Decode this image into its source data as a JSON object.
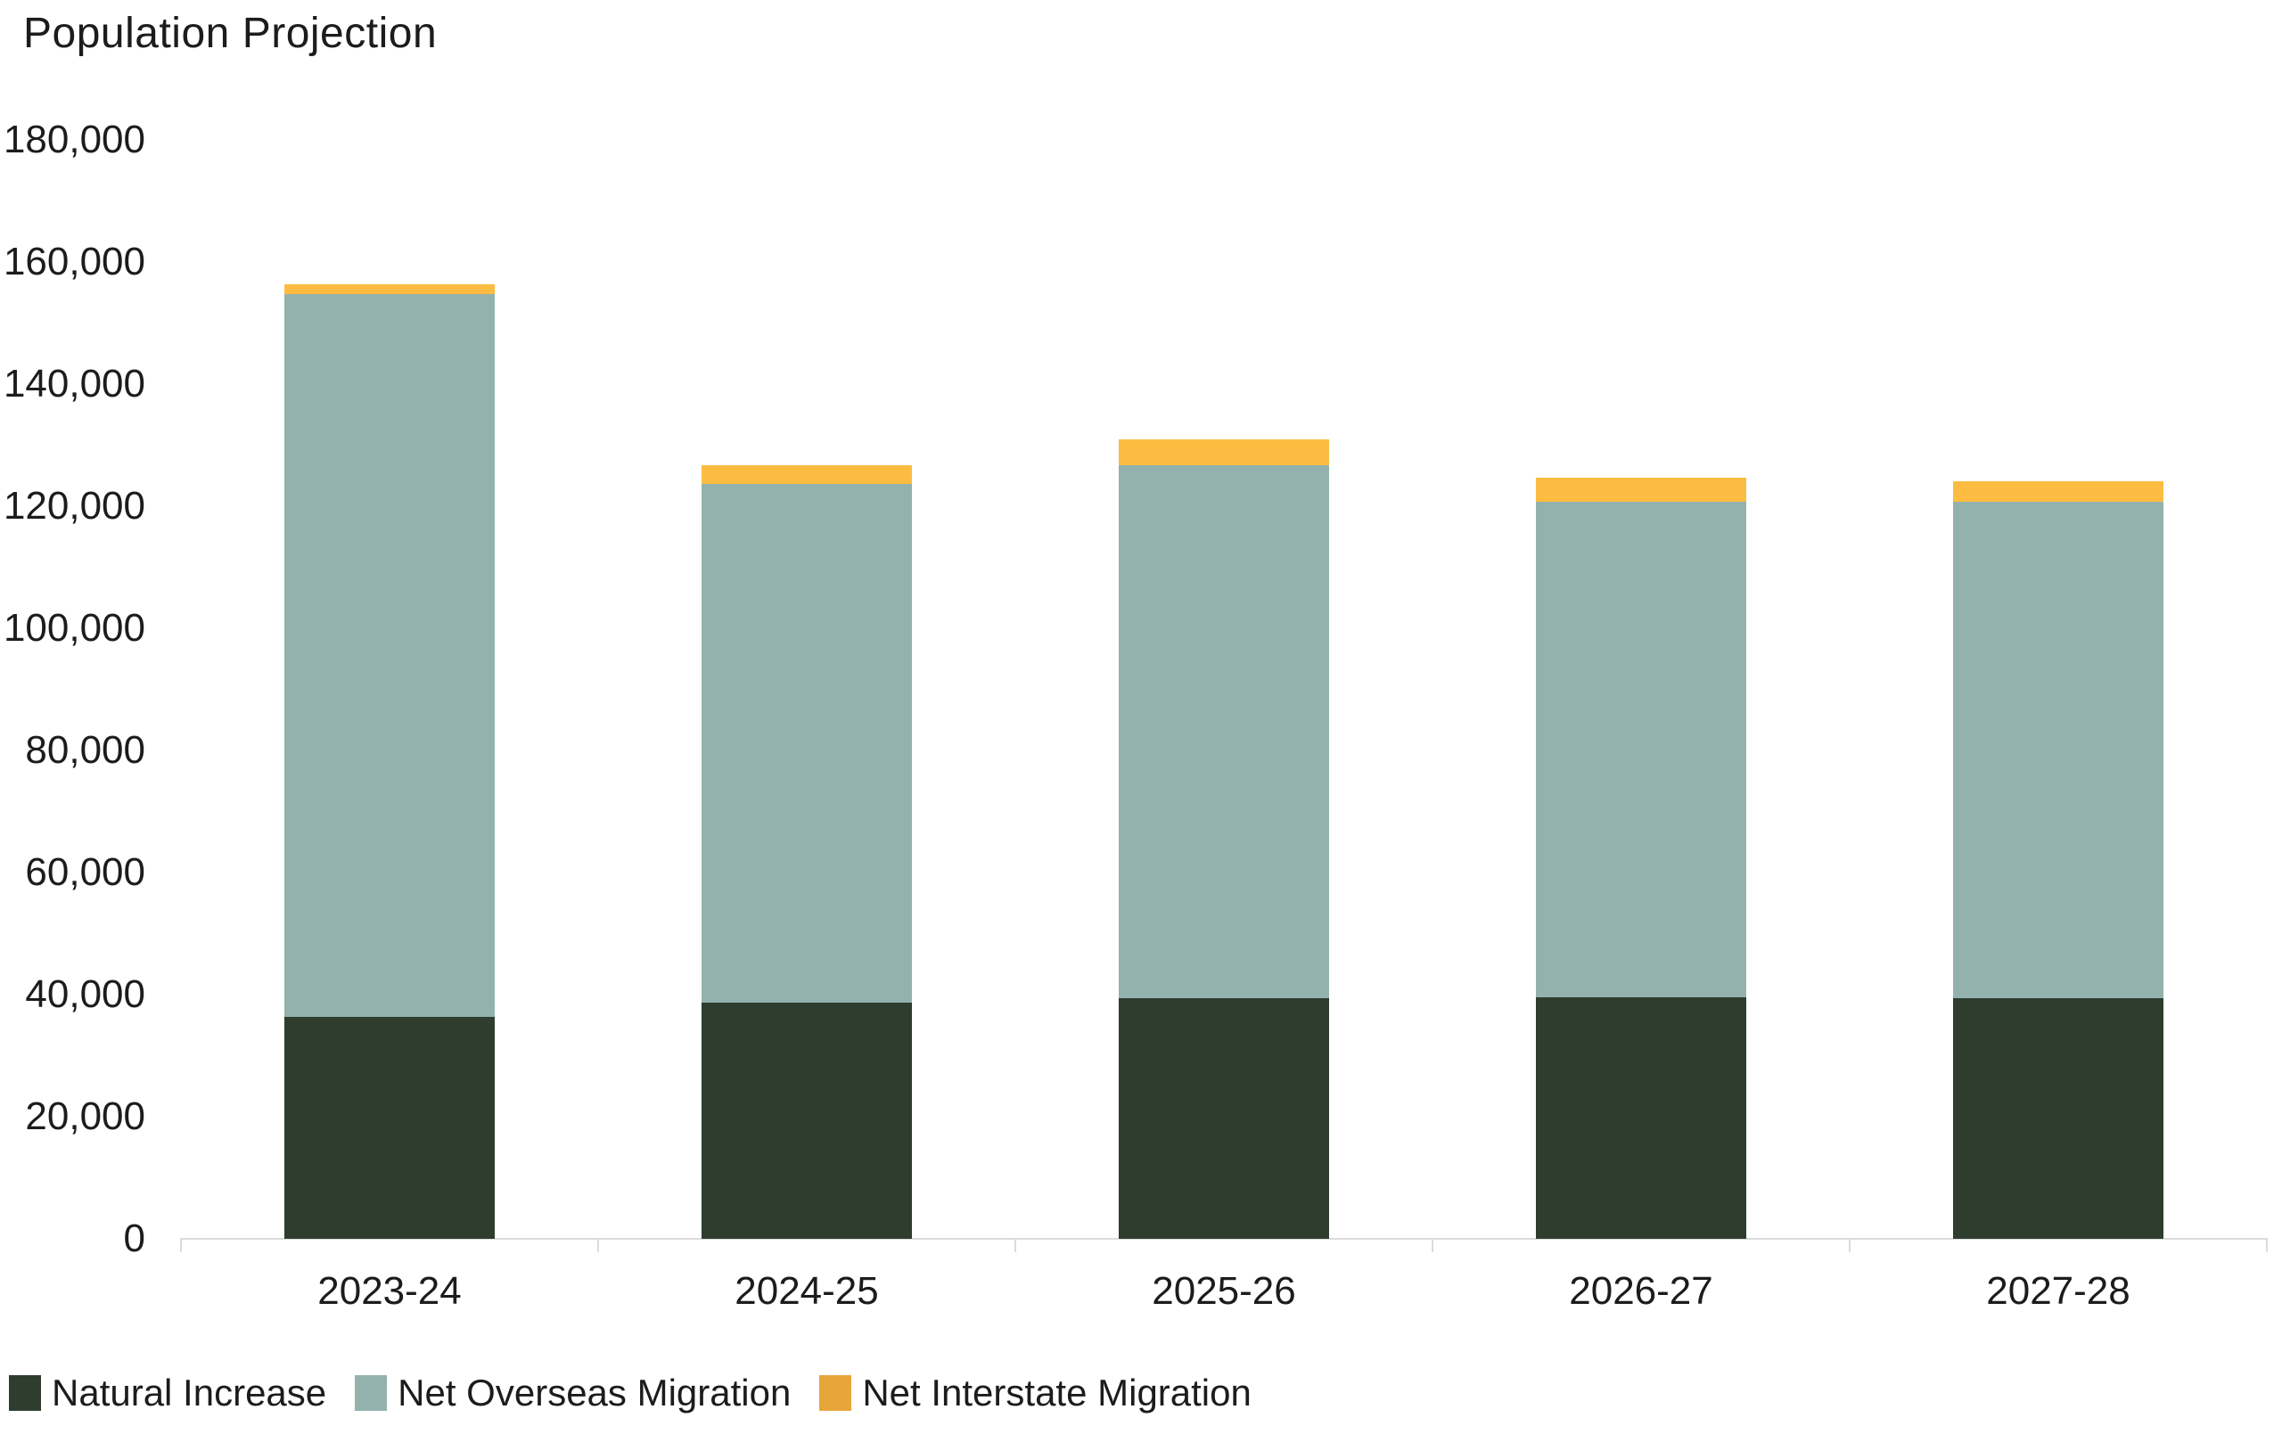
{
  "chart_data": {
    "type": "bar",
    "stacked": true,
    "title": "Population Projection",
    "categories": [
      "2023-24",
      "2024-25",
      "2025-26",
      "2026-27",
      "2027-28"
    ],
    "series": [
      {
        "name": "Natural Increase",
        "color": "#2e3d2e",
        "legend_color": "#2e3d2e",
        "values": [
          36400,
          38700,
          39400,
          39600,
          39400
        ]
      },
      {
        "name": "Net Overseas Migration",
        "color": "#94b2ad",
        "legend_color": "#94b2ad",
        "values": [
          118400,
          84900,
          87300,
          81100,
          81300
        ]
      },
      {
        "name": "Net Interstate Migration",
        "color": "#fbbc41",
        "legend_color": "#e8a63a",
        "values": [
          1600,
          3100,
          4300,
          4000,
          3400
        ]
      }
    ],
    "totals": [
      156400,
      126700,
      131000,
      124700,
      124100
    ],
    "xlabel": "",
    "ylabel": "",
    "ylim": [
      0,
      180000
    ],
    "ytick_interval": 20000,
    "ytick_labels": [
      "0",
      "20,000",
      "40,000",
      "60,000",
      "80,000",
      "100,000",
      "120,000",
      "140,000",
      "160,000",
      "180,000"
    ],
    "grid": false,
    "legend_position": "bottom-left",
    "axis_color": "#dcdcdc",
    "text_color": "#1c1c1c"
  }
}
